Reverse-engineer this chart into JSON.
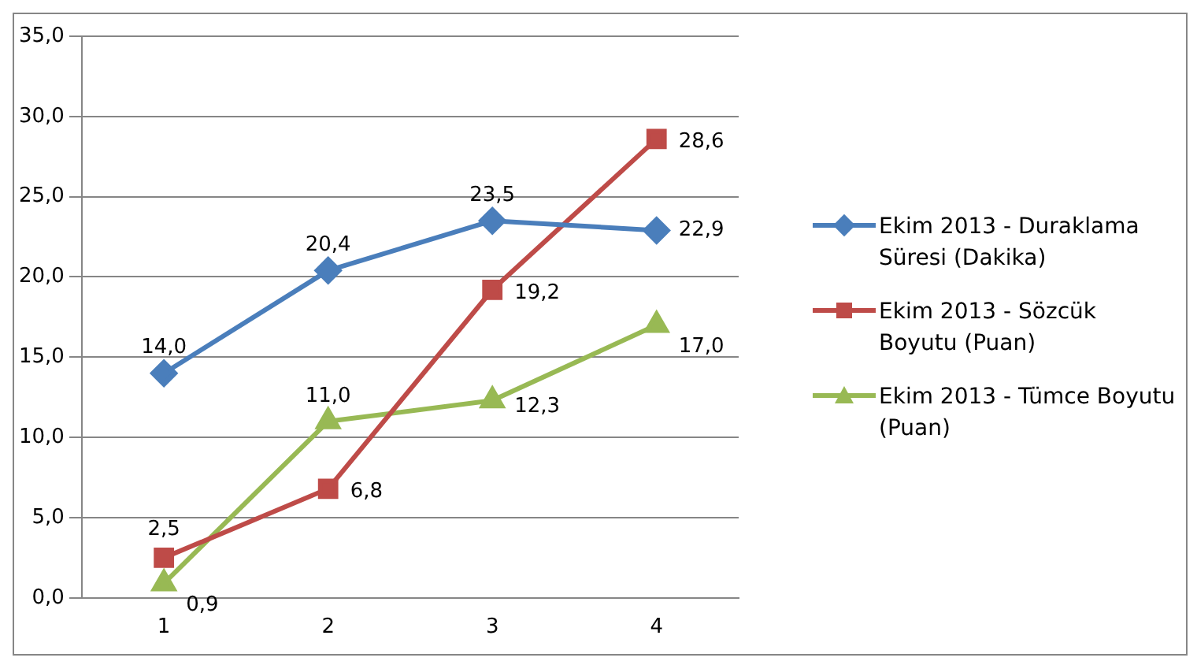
{
  "chart_data": {
    "type": "line",
    "categories": [
      "1",
      "2",
      "3",
      "4"
    ],
    "series": [
      {
        "name": "Ekim 2013 - Duraklama Süresi (Dakika)",
        "color": "#4a7ebb",
        "marker": "diamond",
        "values": [
          14.0,
          20.4,
          23.5,
          22.9
        ],
        "value_labels": [
          "14,0",
          "20,4",
          "23,5",
          "22,9"
        ]
      },
      {
        "name": "Ekim 2013 - Sözcük Boyutu (Puan)",
        "color": "#be4b48",
        "marker": "square",
        "values": [
          2.5,
          6.8,
          19.2,
          28.6
        ],
        "value_labels": [
          "2,5",
          "6,8",
          "19,2",
          "28,6"
        ]
      },
      {
        "name": "Ekim 2013 - Tümce Boyutu (Puan)",
        "color": "#98b954",
        "marker": "triangle",
        "values": [
          0.9,
          11.0,
          12.3,
          17.0
        ],
        "value_labels": [
          "0,9",
          "11,0",
          "12,3",
          "17,0"
        ]
      }
    ],
    "ylim": [
      0,
      35
    ],
    "yticks": [
      {
        "value": 0,
        "label": "0,0"
      },
      {
        "value": 5,
        "label": "5,0"
      },
      {
        "value": 10,
        "label": "10,0"
      },
      {
        "value": 15,
        "label": "15,0"
      },
      {
        "value": 20,
        "label": "20,0"
      },
      {
        "value": 25,
        "label": "25,0"
      },
      {
        "value": 30,
        "label": "30,0"
      },
      {
        "value": 35,
        "label": "35,0"
      }
    ],
    "grid": "y",
    "legend": "right",
    "line_style": "solid"
  }
}
